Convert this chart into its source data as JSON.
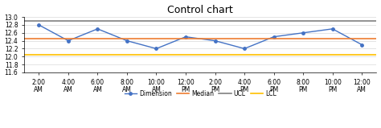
{
  "title": "Control chart",
  "times": [
    "2:00\nAM",
    "4:00\nAM",
    "6:00\nAM",
    "8:00\nAM",
    "10:00\nAM",
    "12:00\nPM",
    "2:00\nPM",
    "4:00\nPM",
    "6:00\nPM",
    "8:00\nPM",
    "10:00\nPM",
    "12:00\nAM"
  ],
  "dimension": [
    12.8,
    12.4,
    12.7,
    12.4,
    12.2,
    12.5,
    12.4,
    12.2,
    12.5,
    12.6,
    12.7,
    12.3
  ],
  "median": 12.45,
  "ucl": 12.896,
  "lcl": 12.054,
  "ylim": [
    11.6,
    13.0
  ],
  "yticks": [
    11.6,
    11.8,
    12.0,
    12.2,
    12.4,
    12.6,
    12.8,
    13.0
  ],
  "dimension_color": "#4472C4",
  "median_color": "#ED7D31",
  "ucl_color": "#808080",
  "lcl_color": "#FFC000",
  "bg_color": "#FFFFFF",
  "legend_labels": [
    "Dimension",
    "Median",
    "UCL",
    "LCL"
  ],
  "title_fontsize": 9,
  "tick_fontsize": 5.5,
  "legend_fontsize": 5.5
}
